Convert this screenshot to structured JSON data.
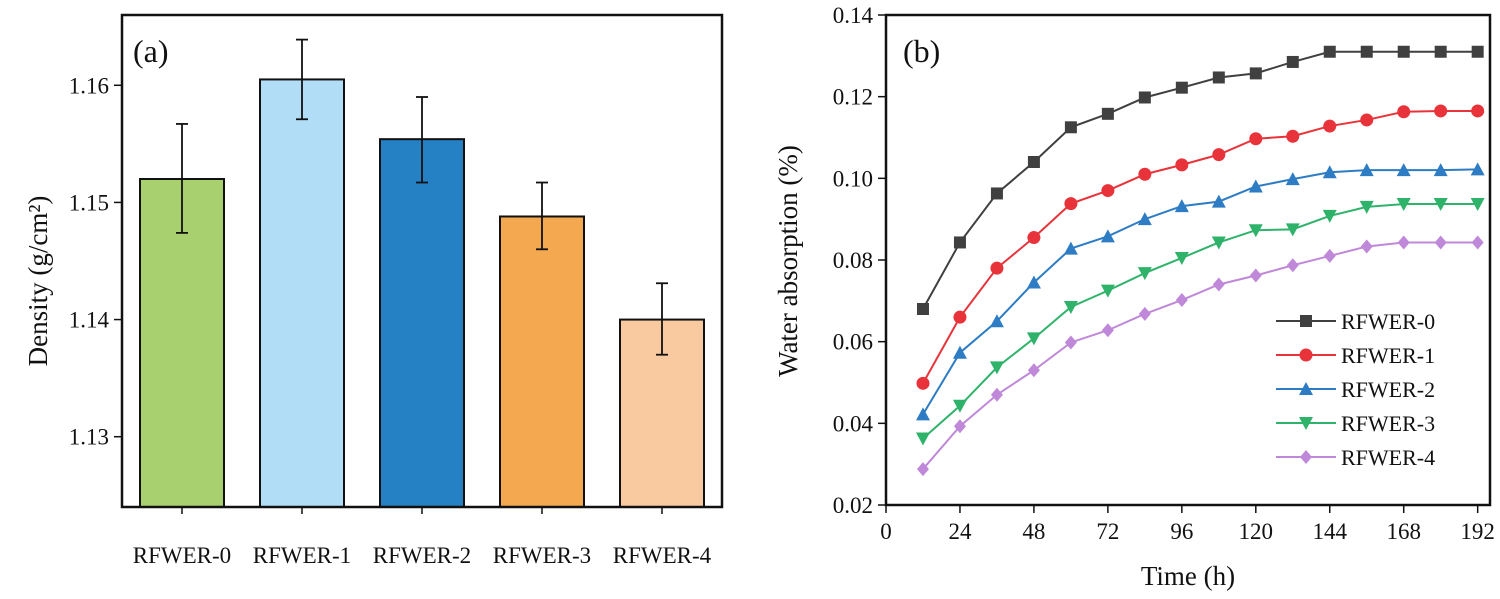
{
  "chart_data": [
    {
      "type": "bar",
      "panel_label": "(a)",
      "title": "",
      "xlabel": "",
      "ylabel": "Density (g/cm²)",
      "categories": [
        "RFWER-0",
        "RFWER-1",
        "RFWER-2",
        "RFWER-3",
        "RFWER-4"
      ],
      "values": [
        1.152,
        1.1605,
        1.1554,
        1.1488,
        1.14
      ],
      "error_low": [
        1.1474,
        1.1571,
        1.1517,
        1.146,
        1.137
      ],
      "error_high": [
        1.1567,
        1.1639,
        1.159,
        1.1517,
        1.1431
      ],
      "colors": [
        "#a9d06f",
        "#b2ddf7",
        "#2680c4",
        "#f4a84f",
        "#f9caa0"
      ],
      "ylim": [
        1.124,
        1.166
      ],
      "yticks": [
        1.13,
        1.14,
        1.15,
        1.16
      ],
      "ytick_labels": [
        "1.13",
        "1.14",
        "1.15",
        "1.16"
      ]
    },
    {
      "type": "line",
      "panel_label": "(b)",
      "title": "",
      "xlabel": "Time (h)",
      "ylabel": "Water absorption (%)",
      "xlim": [
        0,
        196
      ],
      "ylim": [
        0.02,
        0.14
      ],
      "xticks": [
        0,
        24,
        48,
        72,
        96,
        120,
        144,
        168,
        192
      ],
      "xtick_labels": [
        "0",
        "24",
        "48",
        "72",
        "96",
        "120",
        "144",
        "168",
        "192"
      ],
      "yticks": [
        0.02,
        0.04,
        0.06,
        0.08,
        0.1,
        0.12,
        0.14
      ],
      "ytick_labels": [
        "0.02",
        "0.04",
        "0.06",
        "0.08",
        "0.10",
        "0.12",
        "0.14"
      ],
      "legend_position": "bottom-right",
      "x": [
        12,
        24,
        36,
        48,
        60,
        72,
        84,
        96,
        108,
        120,
        132,
        144,
        156,
        168,
        180,
        192
      ],
      "series": [
        {
          "name": "RFWER-0",
          "color": "#404040",
          "marker": "square",
          "values": [
            0.068,
            0.0843,
            0.0963,
            0.104,
            0.1125,
            0.1158,
            0.1198,
            0.1222,
            0.1247,
            0.1257,
            0.1285,
            0.131,
            0.131,
            0.131,
            0.131,
            0.131
          ]
        },
        {
          "name": "RFWER-1",
          "color": "#e8333a",
          "marker": "circle",
          "values": [
            0.0498,
            0.066,
            0.078,
            0.0855,
            0.0938,
            0.097,
            0.101,
            0.1033,
            0.1058,
            0.1097,
            0.1103,
            0.1128,
            0.1143,
            0.1163,
            0.1165,
            0.1165
          ]
        },
        {
          "name": "RFWER-2",
          "color": "#2d7cc4",
          "marker": "triangle-up",
          "values": [
            0.0422,
            0.0573,
            0.065,
            0.0745,
            0.0828,
            0.0858,
            0.09,
            0.0932,
            0.0943,
            0.098,
            0.0998,
            0.1015,
            0.102,
            0.102,
            0.102,
            0.1022
          ]
        },
        {
          "name": "RFWER-3",
          "color": "#2fb36a",
          "marker": "triangle-down",
          "values": [
            0.0363,
            0.0443,
            0.0537,
            0.0608,
            0.0685,
            0.0725,
            0.0768,
            0.0805,
            0.0843,
            0.0873,
            0.0875,
            0.0908,
            0.093,
            0.0937,
            0.0937,
            0.0937
          ]
        },
        {
          "name": "RFWER-4",
          "color": "#bf88d8",
          "marker": "diamond",
          "values": [
            0.0288,
            0.0393,
            0.047,
            0.053,
            0.0598,
            0.0628,
            0.0668,
            0.0702,
            0.074,
            0.0762,
            0.0787,
            0.081,
            0.0833,
            0.0843,
            0.0843,
            0.0843
          ]
        }
      ]
    }
  ]
}
